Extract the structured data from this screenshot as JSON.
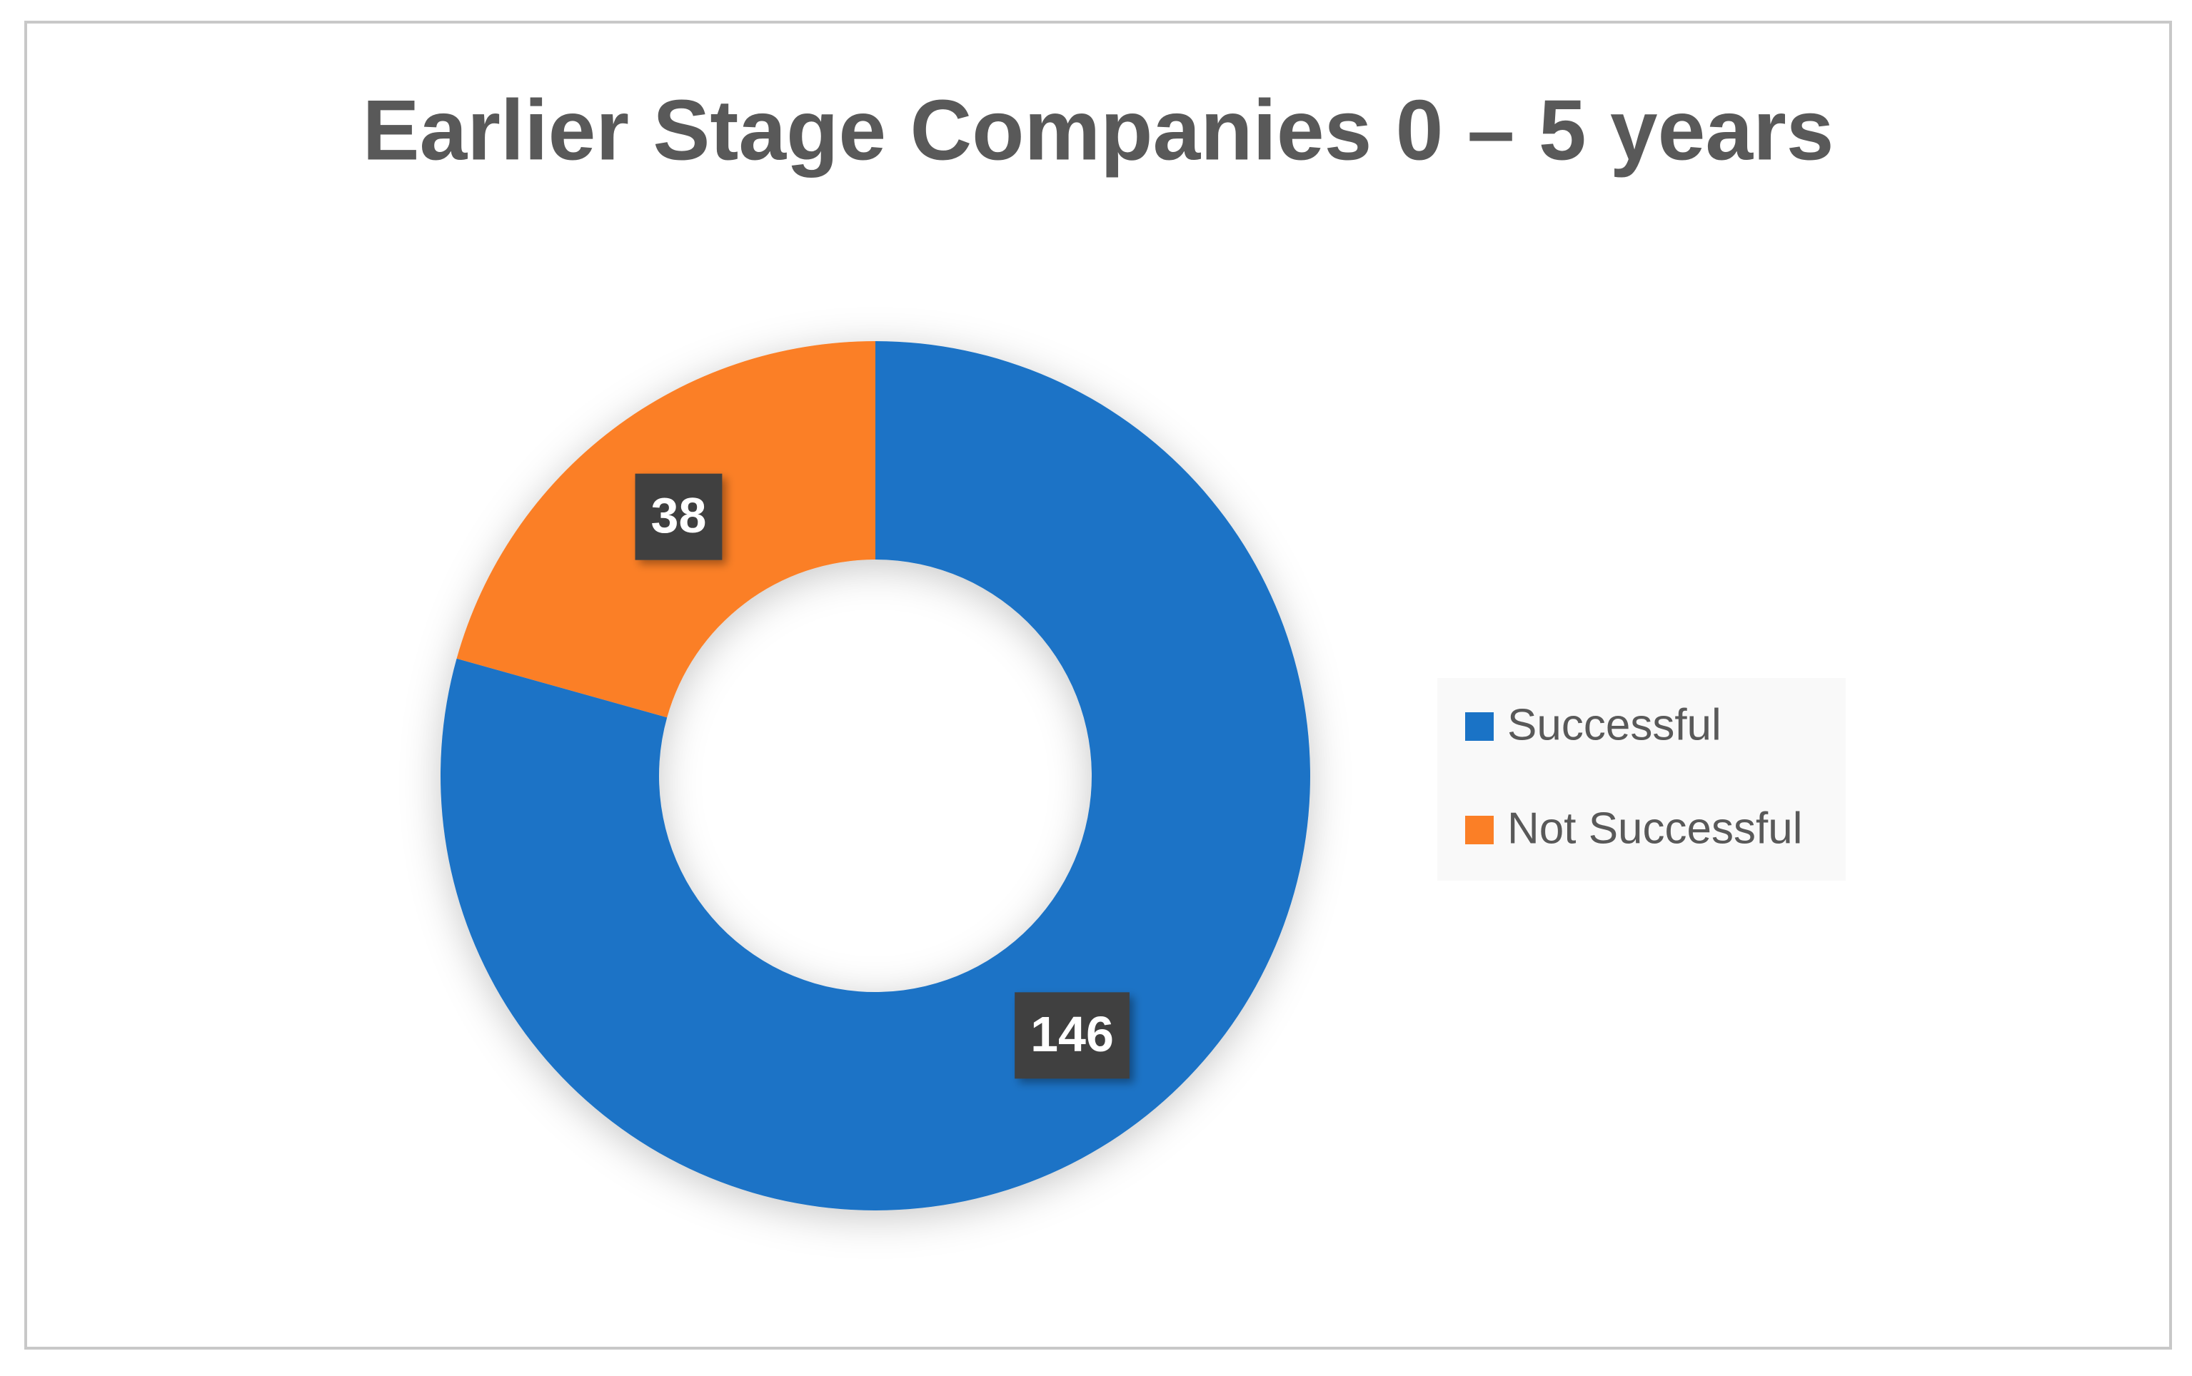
{
  "chart_data": {
    "type": "doughnut",
    "title": "Earlier Stage Companies 0 – 5 years",
    "categories": [
      "Successful",
      "Not Successful"
    ],
    "values": [
      146,
      38
    ],
    "colors": [
      "#1a73c6",
      "#fb7f26"
    ],
    "legend": "right"
  }
}
